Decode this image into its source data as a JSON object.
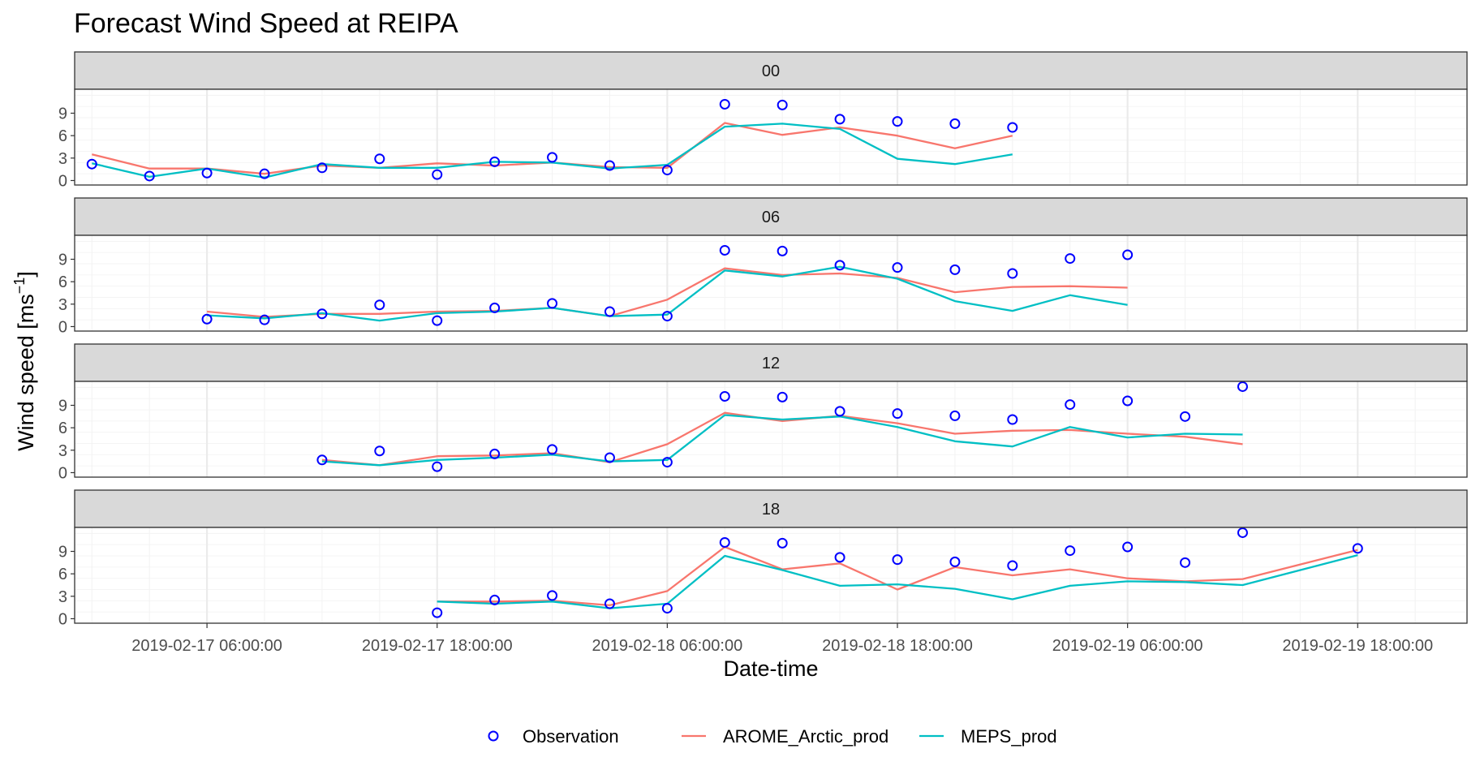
{
  "chart_data": {
    "type": "line",
    "title": "Forecast Wind Speed at REIPA",
    "xlabel": "Date-time",
    "ylabel_main": "Wind speed [ms",
    "ylabel_sup": "−1",
    "ylabel_close": "]",
    "x_start": "2019-02-16 18:00:00",
    "x_step_hours": 6,
    "x_index_range": [
      -0.3,
      23.9
    ],
    "ylim": [
      -0.6,
      12.2
    ],
    "y_ticks": [
      0,
      3,
      6,
      9
    ],
    "x_ticks": [
      {
        "x": 2,
        "label": "2019-02-17 06:00:00"
      },
      {
        "x": 6,
        "label": "2019-02-17 18:00:00"
      },
      {
        "x": 10,
        "label": "2019-02-18 06:00:00"
      },
      {
        "x": 14,
        "label": "2019-02-18 18:00:00"
      },
      {
        "x": 18,
        "label": "2019-02-19 06:00:00"
      },
      {
        "x": 22,
        "label": "2019-02-19 18:00:00"
      }
    ],
    "grid": true,
    "legend_position": "bottom",
    "colors": {
      "Observation": "#0000ff",
      "AROME_Arctic_prod": "#f8766d",
      "MEPS_prod": "#00bfc4"
    },
    "legend": [
      {
        "name": "Observation",
        "kind": "point"
      },
      {
        "name": "AROME_Arctic_prod",
        "kind": "line"
      },
      {
        "name": "MEPS_prod",
        "kind": "line"
      }
    ],
    "panels": [
      {
        "label": "00",
        "x_start": 0,
        "series": [
          {
            "name": "Observation",
            "values": [
              2.2,
              0.6,
              1.0,
              0.9,
              1.7,
              2.9,
              0.8,
              2.5,
              3.1,
              2.0,
              1.4,
              10.2,
              10.1,
              8.2,
              7.9,
              7.6,
              7.1
            ]
          },
          {
            "name": "AROME_Arctic_prod",
            "values": [
              3.5,
              1.6,
              1.6,
              0.9,
              2.0,
              1.7,
              2.3,
              2.0,
              2.4,
              1.8,
              1.7,
              7.7,
              6.1,
              7.1,
              6.0,
              4.3,
              6.0
            ]
          },
          {
            "name": "MEPS_prod",
            "values": [
              2.3,
              0.5,
              1.6,
              0.4,
              2.2,
              1.7,
              1.7,
              2.5,
              2.4,
              1.6,
              2.1,
              7.2,
              7.6,
              6.9,
              2.9,
              2.2,
              3.5
            ]
          }
        ]
      },
      {
        "label": "06",
        "x_start": 2,
        "series": [
          {
            "name": "Observation",
            "values": [
              1.0,
              0.9,
              1.7,
              2.9,
              0.8,
              2.5,
              3.1,
              2.0,
              1.4,
              10.2,
              10.1,
              8.2,
              7.9,
              7.6,
              7.1,
              9.1,
              9.6
            ]
          },
          {
            "name": "AROME_Arctic_prod",
            "values": [
              2.0,
              1.3,
              1.7,
              1.7,
              2.0,
              2.1,
              2.5,
              1.4,
              3.6,
              7.8,
              6.9,
              7.1,
              6.5,
              4.6,
              5.3,
              5.4,
              5.2
            ]
          },
          {
            "name": "MEPS_prod",
            "values": [
              1.5,
              1.1,
              1.8,
              0.8,
              1.8,
              2.0,
              2.5,
              1.4,
              1.6,
              7.5,
              6.7,
              8.0,
              6.4,
              3.4,
              2.1,
              4.2,
              2.9
            ]
          }
        ]
      },
      {
        "label": "12",
        "x_start": 4,
        "series": [
          {
            "name": "Observation",
            "values": [
              1.7,
              2.9,
              0.8,
              2.5,
              3.1,
              2.0,
              1.4,
              10.2,
              10.1,
              8.2,
              7.9,
              7.6,
              7.1,
              9.1,
              9.6,
              7.5,
              11.5
            ]
          },
          {
            "name": "AROME_Arctic_prod",
            "values": [
              1.7,
              1.0,
              2.2,
              2.3,
              2.6,
              1.4,
              3.8,
              8.0,
              6.9,
              7.6,
              6.6,
              5.2,
              5.6,
              5.7,
              5.2,
              4.8,
              3.8
            ]
          },
          {
            "name": "MEPS_prod",
            "values": [
              1.5,
              1.0,
              1.7,
              2.0,
              2.4,
              1.5,
              1.7,
              7.7,
              7.1,
              7.5,
              6.1,
              4.2,
              3.5,
              6.1,
              4.7,
              5.2,
              5.1
            ]
          }
        ]
      },
      {
        "label": "18",
        "x_start": 6,
        "series": [
          {
            "name": "Observation",
            "values": [
              0.8,
              2.5,
              3.1,
              2.0,
              1.4,
              10.2,
              10.1,
              8.2,
              7.9,
              7.6,
              7.1,
              9.1,
              9.6,
              7.5,
              11.5,
              null,
              9.4
            ]
          },
          {
            "name": "AROME_Arctic_prod",
            "values": [
              2.3,
              2.3,
              2.4,
              1.8,
              3.7,
              9.6,
              6.6,
              7.4,
              3.9,
              6.9,
              5.8,
              6.6,
              5.4,
              5.0,
              5.3,
              null,
              9.2
            ]
          },
          {
            "name": "MEPS_prod",
            "values": [
              2.3,
              2.0,
              2.3,
              1.4,
              2.0,
              8.4,
              6.5,
              4.4,
              4.6,
              4.0,
              2.6,
              4.4,
              5.0,
              4.9,
              4.5,
              null,
              8.5
            ]
          }
        ]
      }
    ]
  }
}
